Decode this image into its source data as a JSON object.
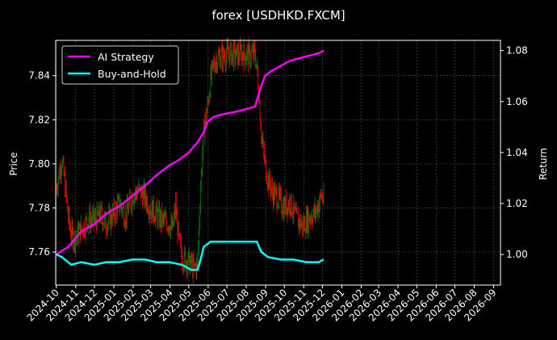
{
  "chart_data": {
    "type": "line",
    "title": "forex [USDHKD.FXCM]",
    "xlabel": "",
    "ylabel": "Price",
    "ylabel_right": "Return",
    "x_ticks": [
      "2024-10",
      "2024-11",
      "2024-12",
      "2025-01",
      "2025-02",
      "2025-03",
      "2025-04",
      "2025-05",
      "2025-06",
      "2025-07",
      "2025-08",
      "2025-09",
      "2025-10",
      "2025-11",
      "2025-12",
      "2026-01",
      "2026-02",
      "2026-03",
      "2026-04",
      "2026-05",
      "2026-06",
      "2026-07",
      "2026-08",
      "2026-09"
    ],
    "xlim": [
      "2024-09-30",
      "2026-09-12"
    ],
    "y_left_ticks": [
      7.76,
      7.78,
      7.8,
      7.82,
      7.84
    ],
    "ylim_left": [
      7.745,
      7.856
    ],
    "y_right_ticks": [
      1.0,
      1.02,
      1.04,
      1.06,
      1.08
    ],
    "ylim_right": [
      0.988,
      1.084
    ],
    "grid": true,
    "legend_position": "upper-left",
    "colors": {
      "ai_strategy": "#ff00ff",
      "buy_and_hold": "#00ffff",
      "candle_up": "#008000",
      "candle_down": "#ff0000",
      "grid": "#555555"
    },
    "price_series": {
      "name": "",
      "axis": "left",
      "points": [
        [
          "2024-10-01",
          7.789
        ],
        [
          "2024-10-05",
          7.795
        ],
        [
          "2024-10-10",
          7.802
        ],
        [
          "2024-10-15",
          7.79
        ],
        [
          "2024-10-20",
          7.776
        ],
        [
          "2024-10-25",
          7.768
        ],
        [
          "2024-11-01",
          7.766
        ],
        [
          "2024-11-08",
          7.77
        ],
        [
          "2024-11-15",
          7.772
        ],
        [
          "2024-11-22",
          7.775
        ],
        [
          "2024-12-01",
          7.774
        ],
        [
          "2024-12-10",
          7.777
        ],
        [
          "2024-12-20",
          7.773
        ],
        [
          "2024-12-31",
          7.777
        ],
        [
          "2025-01-10",
          7.782
        ],
        [
          "2025-01-20",
          7.776
        ],
        [
          "2025-01-31",
          7.786
        ],
        [
          "2025-02-10",
          7.788
        ],
        [
          "2025-02-20",
          7.785
        ],
        [
          "2025-02-28",
          7.78
        ],
        [
          "2025-03-10",
          7.777
        ],
        [
          "2025-03-20",
          7.774
        ],
        [
          "2025-03-31",
          7.773
        ],
        [
          "2025-04-05",
          7.77
        ],
        [
          "2025-04-10",
          7.781
        ],
        [
          "2025-04-15",
          7.765
        ],
        [
          "2025-04-22",
          7.757
        ],
        [
          "2025-04-30",
          7.756
        ],
        [
          "2025-05-05",
          7.754
        ],
        [
          "2025-05-10",
          7.752
        ],
        [
          "2025-05-15",
          7.755
        ],
        [
          "2025-05-20",
          7.79
        ],
        [
          "2025-05-25",
          7.815
        ],
        [
          "2025-05-31",
          7.826
        ],
        [
          "2025-06-05",
          7.838
        ],
        [
          "2025-06-10",
          7.845
        ],
        [
          "2025-06-15",
          7.848
        ],
        [
          "2025-06-25",
          7.849
        ],
        [
          "2025-07-05",
          7.85
        ],
        [
          "2025-07-15",
          7.849
        ],
        [
          "2025-07-25",
          7.85
        ],
        [
          "2025-08-05",
          7.849
        ],
        [
          "2025-08-15",
          7.85
        ],
        [
          "2025-08-20",
          7.838
        ],
        [
          "2025-08-25",
          7.814
        ],
        [
          "2025-08-31",
          7.8
        ],
        [
          "2025-09-05",
          7.793
        ],
        [
          "2025-09-12",
          7.787
        ],
        [
          "2025-09-20",
          7.785
        ],
        [
          "2025-09-30",
          7.78
        ],
        [
          "2025-10-10",
          7.783
        ],
        [
          "2025-10-20",
          7.775
        ],
        [
          "2025-10-31",
          7.772
        ],
        [
          "2025-11-10",
          7.776
        ],
        [
          "2025-11-20",
          7.778
        ],
        [
          "2025-11-30",
          7.786
        ],
        [
          "2025-12-03",
          7.783
        ]
      ]
    },
    "series": [
      {
        "name": "AI Strategy",
        "axis": "right",
        "points": [
          [
            "2024-10-01",
            1.0
          ],
          [
            "2024-10-20",
            1.003
          ],
          [
            "2024-11-10",
            1.009
          ],
          [
            "2024-12-01",
            1.012
          ],
          [
            "2024-12-20",
            1.016
          ],
          [
            "2025-01-10",
            1.019
          ],
          [
            "2025-01-31",
            1.023
          ],
          [
            "2025-02-20",
            1.027
          ],
          [
            "2025-03-10",
            1.031
          ],
          [
            "2025-03-31",
            1.035
          ],
          [
            "2025-04-15",
            1.037
          ],
          [
            "2025-05-01",
            1.04
          ],
          [
            "2025-05-15",
            1.044
          ],
          [
            "2025-05-25",
            1.048
          ],
          [
            "2025-05-31",
            1.052
          ],
          [
            "2025-06-10",
            1.054
          ],
          [
            "2025-06-25",
            1.055
          ],
          [
            "2025-07-15",
            1.056
          ],
          [
            "2025-07-31",
            1.057
          ],
          [
            "2025-08-15",
            1.058
          ],
          [
            "2025-08-20",
            1.062
          ],
          [
            "2025-08-25",
            1.066
          ],
          [
            "2025-08-31",
            1.07
          ],
          [
            "2025-09-10",
            1.072
          ],
          [
            "2025-09-25",
            1.074
          ],
          [
            "2025-10-10",
            1.076
          ],
          [
            "2025-10-25",
            1.077
          ],
          [
            "2025-11-10",
            1.078
          ],
          [
            "2025-11-25",
            1.079
          ],
          [
            "2025-12-03",
            1.08
          ]
        ]
      },
      {
        "name": "Buy-and-Hold",
        "axis": "right",
        "points": [
          [
            "2024-10-01",
            1.0
          ],
          [
            "2024-10-10",
            0.999
          ],
          [
            "2024-10-25",
            0.996
          ],
          [
            "2024-11-10",
            0.997
          ],
          [
            "2024-12-01",
            0.996
          ],
          [
            "2024-12-20",
            0.997
          ],
          [
            "2025-01-10",
            0.997
          ],
          [
            "2025-01-31",
            0.998
          ],
          [
            "2025-02-20",
            0.998
          ],
          [
            "2025-03-10",
            0.997
          ],
          [
            "2025-03-31",
            0.997
          ],
          [
            "2025-04-20",
            0.996
          ],
          [
            "2025-05-05",
            0.994
          ],
          [
            "2025-05-15",
            0.994
          ],
          [
            "2025-05-20",
            0.998
          ],
          [
            "2025-05-25",
            1.003
          ],
          [
            "2025-06-05",
            1.005
          ],
          [
            "2025-06-20",
            1.005
          ],
          [
            "2025-07-15",
            1.005
          ],
          [
            "2025-08-05",
            1.005
          ],
          [
            "2025-08-18",
            1.005
          ],
          [
            "2025-08-25",
            1.001
          ],
          [
            "2025-09-05",
            0.999
          ],
          [
            "2025-09-25",
            0.998
          ],
          [
            "2025-10-15",
            0.998
          ],
          [
            "2025-11-05",
            0.997
          ],
          [
            "2025-11-25",
            0.997
          ],
          [
            "2025-12-03",
            0.998
          ]
        ]
      }
    ]
  }
}
